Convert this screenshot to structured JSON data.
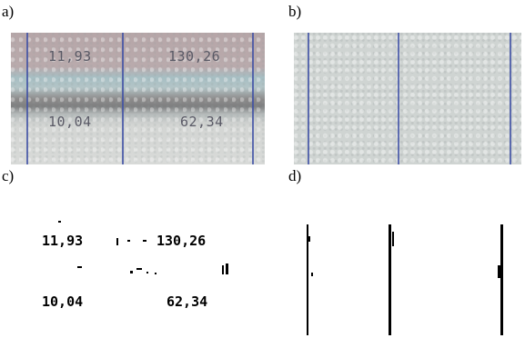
{
  "labels": {
    "a": "a)",
    "b": "b)",
    "c": "c)",
    "d": "d)"
  },
  "panel_a": {
    "r1c1": "11,93",
    "r1c2": "130,26",
    "r2c1": "10,04",
    "r2c2": "62,34"
  },
  "panel_c": {
    "r1c1": "11,93",
    "r1c2": "130,26",
    "r2c1": "10,04",
    "r2c2": "62,34"
  }
}
